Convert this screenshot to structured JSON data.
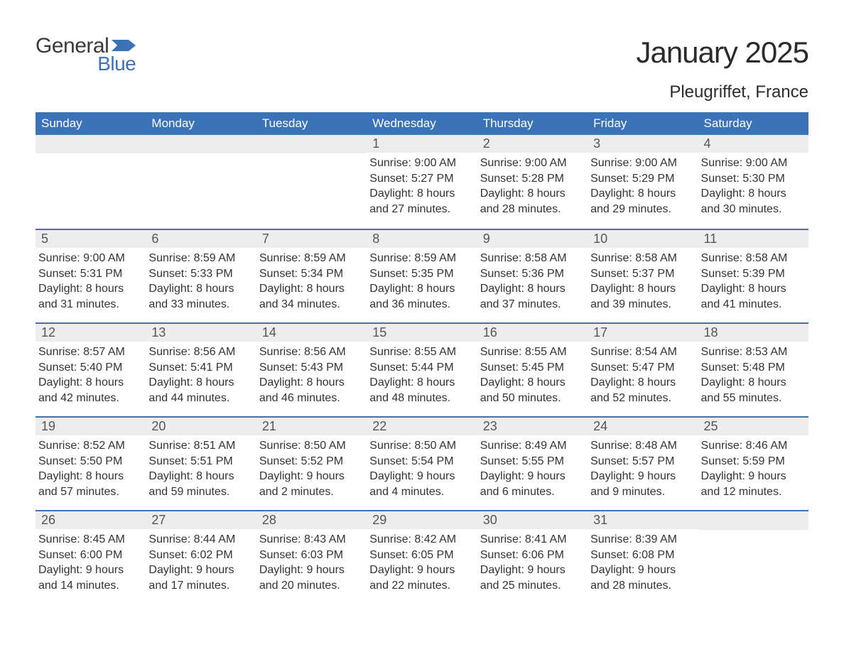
{
  "logo": {
    "general": "General",
    "blue": "Blue"
  },
  "title": "January 2025",
  "location": "Pleugriffet, France",
  "colors": {
    "header_bg": "#3b73b9",
    "header_text": "#ffffff",
    "daynum_bg": "#ededed",
    "daynum_text": "#555555",
    "body_text": "#333333",
    "rule": "#3b73b9",
    "logo_gray": "#3a3a3a",
    "logo_blue": "#3b73b9",
    "page_bg": "#ffffff"
  },
  "typography": {
    "title_fontsize": 42,
    "location_fontsize": 24,
    "dow_fontsize": 17,
    "daynum_fontsize": 18,
    "body_fontsize": 16,
    "font_family": "Arial"
  },
  "days_of_week": [
    "Sunday",
    "Monday",
    "Tuesday",
    "Wednesday",
    "Thursday",
    "Friday",
    "Saturday"
  ],
  "weeks": [
    [
      {
        "n": "",
        "sunrise": "",
        "sunset": "",
        "daylight": ""
      },
      {
        "n": "",
        "sunrise": "",
        "sunset": "",
        "daylight": ""
      },
      {
        "n": "",
        "sunrise": "",
        "sunset": "",
        "daylight": ""
      },
      {
        "n": "1",
        "sunrise": "Sunrise: 9:00 AM",
        "sunset": "Sunset: 5:27 PM",
        "daylight": "Daylight: 8 hours and 27 minutes."
      },
      {
        "n": "2",
        "sunrise": "Sunrise: 9:00 AM",
        "sunset": "Sunset: 5:28 PM",
        "daylight": "Daylight: 8 hours and 28 minutes."
      },
      {
        "n": "3",
        "sunrise": "Sunrise: 9:00 AM",
        "sunset": "Sunset: 5:29 PM",
        "daylight": "Daylight: 8 hours and 29 minutes."
      },
      {
        "n": "4",
        "sunrise": "Sunrise: 9:00 AM",
        "sunset": "Sunset: 5:30 PM",
        "daylight": "Daylight: 8 hours and 30 minutes."
      }
    ],
    [
      {
        "n": "5",
        "sunrise": "Sunrise: 9:00 AM",
        "sunset": "Sunset: 5:31 PM",
        "daylight": "Daylight: 8 hours and 31 minutes."
      },
      {
        "n": "6",
        "sunrise": "Sunrise: 8:59 AM",
        "sunset": "Sunset: 5:33 PM",
        "daylight": "Daylight: 8 hours and 33 minutes."
      },
      {
        "n": "7",
        "sunrise": "Sunrise: 8:59 AM",
        "sunset": "Sunset: 5:34 PM",
        "daylight": "Daylight: 8 hours and 34 minutes."
      },
      {
        "n": "8",
        "sunrise": "Sunrise: 8:59 AM",
        "sunset": "Sunset: 5:35 PM",
        "daylight": "Daylight: 8 hours and 36 minutes."
      },
      {
        "n": "9",
        "sunrise": "Sunrise: 8:58 AM",
        "sunset": "Sunset: 5:36 PM",
        "daylight": "Daylight: 8 hours and 37 minutes."
      },
      {
        "n": "10",
        "sunrise": "Sunrise: 8:58 AM",
        "sunset": "Sunset: 5:37 PM",
        "daylight": "Daylight: 8 hours and 39 minutes."
      },
      {
        "n": "11",
        "sunrise": "Sunrise: 8:58 AM",
        "sunset": "Sunset: 5:39 PM",
        "daylight": "Daylight: 8 hours and 41 minutes."
      }
    ],
    [
      {
        "n": "12",
        "sunrise": "Sunrise: 8:57 AM",
        "sunset": "Sunset: 5:40 PM",
        "daylight": "Daylight: 8 hours and 42 minutes."
      },
      {
        "n": "13",
        "sunrise": "Sunrise: 8:56 AM",
        "sunset": "Sunset: 5:41 PM",
        "daylight": "Daylight: 8 hours and 44 minutes."
      },
      {
        "n": "14",
        "sunrise": "Sunrise: 8:56 AM",
        "sunset": "Sunset: 5:43 PM",
        "daylight": "Daylight: 8 hours and 46 minutes."
      },
      {
        "n": "15",
        "sunrise": "Sunrise: 8:55 AM",
        "sunset": "Sunset: 5:44 PM",
        "daylight": "Daylight: 8 hours and 48 minutes."
      },
      {
        "n": "16",
        "sunrise": "Sunrise: 8:55 AM",
        "sunset": "Sunset: 5:45 PM",
        "daylight": "Daylight: 8 hours and 50 minutes."
      },
      {
        "n": "17",
        "sunrise": "Sunrise: 8:54 AM",
        "sunset": "Sunset: 5:47 PM",
        "daylight": "Daylight: 8 hours and 52 minutes."
      },
      {
        "n": "18",
        "sunrise": "Sunrise: 8:53 AM",
        "sunset": "Sunset: 5:48 PM",
        "daylight": "Daylight: 8 hours and 55 minutes."
      }
    ],
    [
      {
        "n": "19",
        "sunrise": "Sunrise: 8:52 AM",
        "sunset": "Sunset: 5:50 PM",
        "daylight": "Daylight: 8 hours and 57 minutes."
      },
      {
        "n": "20",
        "sunrise": "Sunrise: 8:51 AM",
        "sunset": "Sunset: 5:51 PM",
        "daylight": "Daylight: 8 hours and 59 minutes."
      },
      {
        "n": "21",
        "sunrise": "Sunrise: 8:50 AM",
        "sunset": "Sunset: 5:52 PM",
        "daylight": "Daylight: 9 hours and 2 minutes."
      },
      {
        "n": "22",
        "sunrise": "Sunrise: 8:50 AM",
        "sunset": "Sunset: 5:54 PM",
        "daylight": "Daylight: 9 hours and 4 minutes."
      },
      {
        "n": "23",
        "sunrise": "Sunrise: 8:49 AM",
        "sunset": "Sunset: 5:55 PM",
        "daylight": "Daylight: 9 hours and 6 minutes."
      },
      {
        "n": "24",
        "sunrise": "Sunrise: 8:48 AM",
        "sunset": "Sunset: 5:57 PM",
        "daylight": "Daylight: 9 hours and 9 minutes."
      },
      {
        "n": "25",
        "sunrise": "Sunrise: 8:46 AM",
        "sunset": "Sunset: 5:59 PM",
        "daylight": "Daylight: 9 hours and 12 minutes."
      }
    ],
    [
      {
        "n": "26",
        "sunrise": "Sunrise: 8:45 AM",
        "sunset": "Sunset: 6:00 PM",
        "daylight": "Daylight: 9 hours and 14 minutes."
      },
      {
        "n": "27",
        "sunrise": "Sunrise: 8:44 AM",
        "sunset": "Sunset: 6:02 PM",
        "daylight": "Daylight: 9 hours and 17 minutes."
      },
      {
        "n": "28",
        "sunrise": "Sunrise: 8:43 AM",
        "sunset": "Sunset: 6:03 PM",
        "daylight": "Daylight: 9 hours and 20 minutes."
      },
      {
        "n": "29",
        "sunrise": "Sunrise: 8:42 AM",
        "sunset": "Sunset: 6:05 PM",
        "daylight": "Daylight: 9 hours and 22 minutes."
      },
      {
        "n": "30",
        "sunrise": "Sunrise: 8:41 AM",
        "sunset": "Sunset: 6:06 PM",
        "daylight": "Daylight: 9 hours and 25 minutes."
      },
      {
        "n": "31",
        "sunrise": "Sunrise: 8:39 AM",
        "sunset": "Sunset: 6:08 PM",
        "daylight": "Daylight: 9 hours and 28 minutes."
      },
      {
        "n": "",
        "sunrise": "",
        "sunset": "",
        "daylight": ""
      }
    ]
  ]
}
